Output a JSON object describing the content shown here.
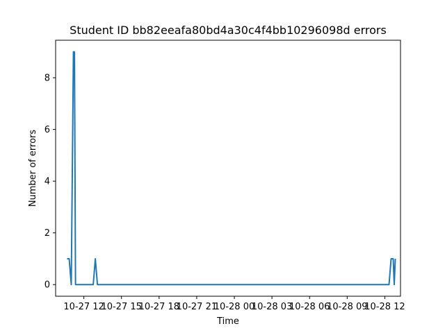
{
  "chart_data": {
    "type": "line",
    "title": "Student ID bb82eeafa80bd4a30c4f4bb10296098d errors",
    "xlabel": "Time",
    "ylabel": "Number of errors",
    "xlim": [
      "10-27 09:45",
      "10-28 13:15"
    ],
    "ylim": [
      -0.45,
      9.45
    ],
    "grid": false,
    "x_ticks": [
      {
        "at": "10-27 12:00",
        "label": "10-27 12"
      },
      {
        "at": "10-27 15:00",
        "label": "10-27 15"
      },
      {
        "at": "10-27 18:00",
        "label": "10-27 18"
      },
      {
        "at": "10-27 21:00",
        "label": "10-27 21"
      },
      {
        "at": "10-28 00:00",
        "label": "10-28 00"
      },
      {
        "at": "10-28 03:00",
        "label": "10-28 03"
      },
      {
        "at": "10-28 06:00",
        "label": "10-28 06"
      },
      {
        "at": "10-28 09:00",
        "label": "10-28 09"
      },
      {
        "at": "10-28 12:00",
        "label": "10-28 12"
      }
    ],
    "y_ticks": [
      0,
      2,
      4,
      6,
      8
    ],
    "series": [
      {
        "color": "#1f77b4",
        "points": [
          {
            "x": "10-27 10:40",
            "y": 1
          },
          {
            "x": "10-27 10:50",
            "y": 1
          },
          {
            "x": "10-27 11:00",
            "y": 0
          },
          {
            "x": "10-27 11:10",
            "y": 9
          },
          {
            "x": "10-27 11:15",
            "y": 9
          },
          {
            "x": "10-27 11:20",
            "y": 0
          },
          {
            "x": "10-27 12:45",
            "y": 0
          },
          {
            "x": "10-27 12:55",
            "y": 1
          },
          {
            "x": "10-27 13:05",
            "y": 0
          },
          {
            "x": "10-28 12:20",
            "y": 0
          },
          {
            "x": "10-28 12:30",
            "y": 1
          },
          {
            "x": "10-28 12:40",
            "y": 1
          },
          {
            "x": "10-28 12:45",
            "y": 0
          },
          {
            "x": "10-28 12:50",
            "y": 1
          }
        ]
      }
    ]
  }
}
